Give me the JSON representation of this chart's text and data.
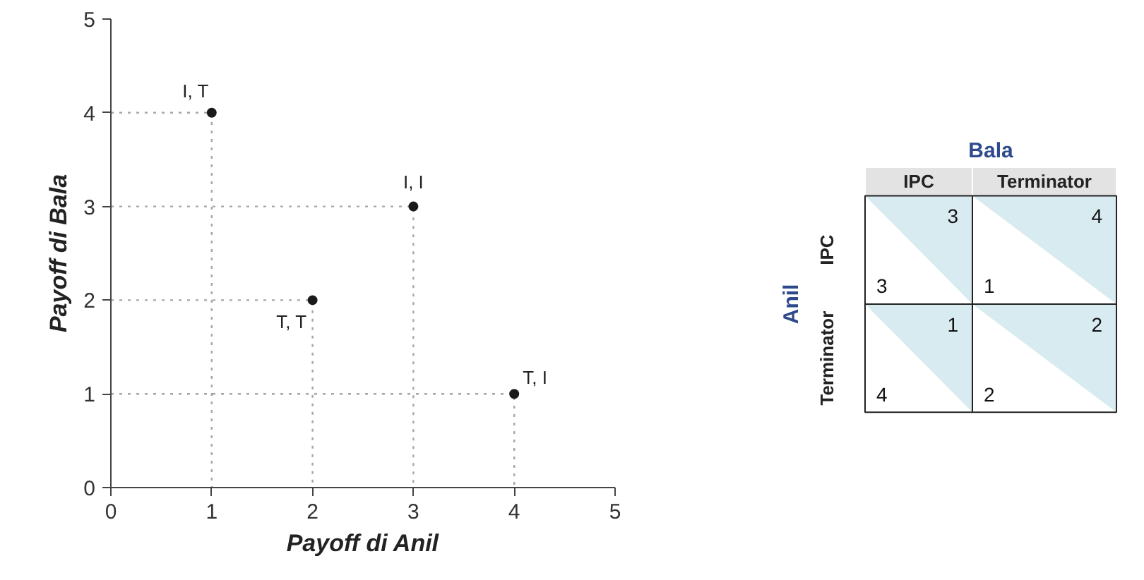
{
  "chart_data": [
    {
      "type": "scatter",
      "xlabel": "Payoff di Anil",
      "ylabel": "Payoff di Bala",
      "xlim": [
        0,
        5
      ],
      "ylim": [
        0,
        5
      ],
      "xticks": [
        0,
        1,
        2,
        3,
        4,
        5
      ],
      "yticks": [
        0,
        1,
        2,
        3,
        4,
        5
      ],
      "series": [
        {
          "type": "line",
          "x": [
            0,
            1,
            1
          ],
          "values": [
            4,
            4,
            0
          ],
          "color": "#a6a6a6",
          "line_style": "dotted"
        },
        {
          "type": "line",
          "x": [
            0,
            3,
            3
          ],
          "values": [
            3,
            3,
            0
          ],
          "color": "#a6a6a6",
          "line_style": "dotted"
        },
        {
          "type": "line",
          "x": [
            0,
            2,
            2
          ],
          "values": [
            2,
            2,
            0
          ],
          "color": "#a6a6a6",
          "line_style": "dotted"
        },
        {
          "type": "line",
          "x": [
            0,
            4,
            4
          ],
          "values": [
            1,
            1,
            0
          ],
          "color": "#a6a6a6",
          "line_style": "dotted"
        },
        {
          "x": [
            1,
            3,
            2,
            4
          ],
          "values": [
            4,
            3,
            2,
            1
          ],
          "color": "#1a1a1a",
          "marker": "circle"
        }
      ],
      "annotations": [
        {
          "text": "I, T",
          "x": 1,
          "y": 4
        },
        {
          "text": "I, I",
          "x": 3,
          "y": 3
        },
        {
          "text": "T, T",
          "x": 2,
          "y": 2
        },
        {
          "text": "T, I",
          "x": 4,
          "y": 1
        }
      ]
    },
    {
      "type": "other",
      "title": "Bala",
      "ylabel": "Anil",
      "categories": [
        "IPC",
        "Terminator"
      ],
      "y_categories": [
        "IPC",
        "Terminator"
      ],
      "annotations": [
        "3",
        "3",
        "1",
        "4",
        "4",
        "1",
        "2",
        "2"
      ],
      "color": "#d7ebf1"
    }
  ]
}
